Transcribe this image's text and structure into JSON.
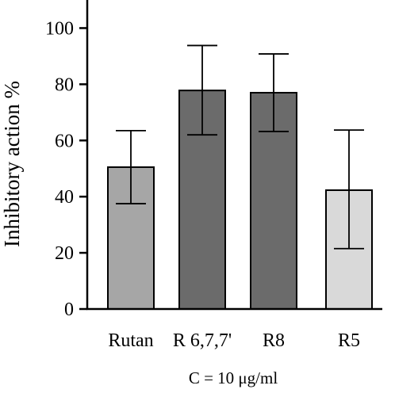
{
  "chart_data": {
    "type": "bar",
    "categories": [
      "Rutan",
      "R 6,7,7'",
      "R8",
      "R5"
    ],
    "values": [
      50.5,
      77.8,
      77.0,
      42.3
    ],
    "error_low": [
      37.5,
      62.0,
      63.2,
      21.5
    ],
    "error_high": [
      63.5,
      93.8,
      90.8,
      63.7
    ],
    "bar_colors": [
      "#a6a6a6",
      "#6b6b6b",
      "#6b6b6b",
      "#d9d9d9"
    ],
    "ylabel": "Inhibitory action %",
    "xlabel": "",
    "ylim": [
      0,
      110
    ],
    "yticks": [
      "0",
      "20",
      "40",
      "60",
      "80",
      "100"
    ],
    "grid": false,
    "legend": "none",
    "note": "C = 10 μg/ml"
  }
}
